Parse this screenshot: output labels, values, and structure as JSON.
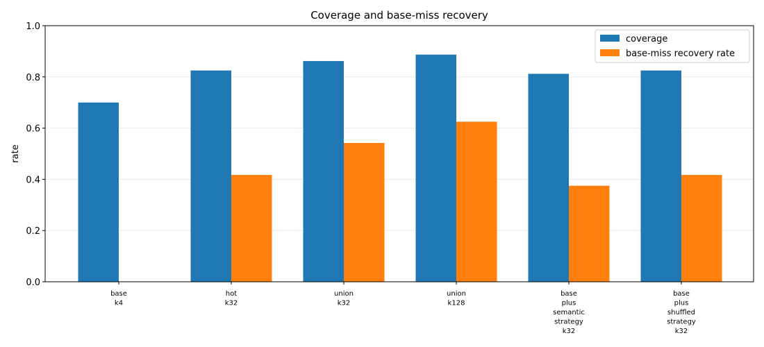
{
  "chart_data": {
    "type": "bar",
    "title": "Coverage and base-miss recovery",
    "xlabel": "",
    "ylabel": "rate",
    "ylim": [
      0,
      1.0
    ],
    "yticks": [
      0.0,
      0.2,
      0.4,
      0.6,
      0.8,
      1.0
    ],
    "ytick_labels": [
      "0.0",
      "0.2",
      "0.4",
      "0.6",
      "0.8",
      "1.0"
    ],
    "grid": "y",
    "legend_position": "top-right",
    "categories": [
      [
        "base",
        "k4"
      ],
      [
        "hot",
        "k32"
      ],
      [
        "union",
        "k32"
      ],
      [
        "union",
        "k128"
      ],
      [
        "base",
        "plus",
        "semantic",
        "strategy",
        "k32"
      ],
      [
        "base",
        "plus",
        "shuffled",
        "strategy",
        "k32"
      ]
    ],
    "series": [
      {
        "name": "coverage",
        "color": "#1f77b4",
        "values": [
          0.7,
          0.825,
          0.862,
          0.887,
          0.812,
          0.825
        ]
      },
      {
        "name": "base-miss recovery rate",
        "color": "#ff7f0e",
        "values": [
          0.0,
          0.417,
          0.542,
          0.625,
          0.375,
          0.417
        ]
      }
    ]
  }
}
